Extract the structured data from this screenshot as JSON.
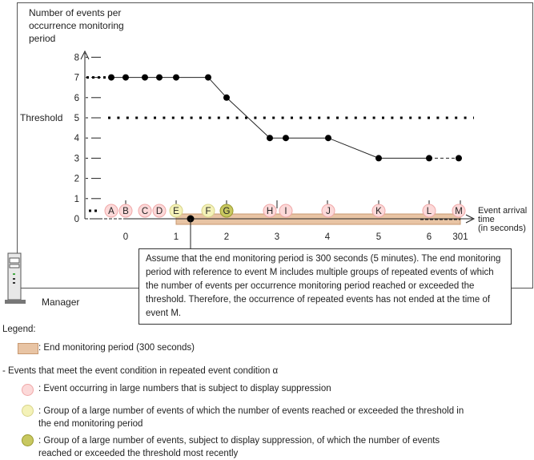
{
  "y_axis_title": [
    "Number of events per",
    "occurrence monitoring",
    "period"
  ],
  "threshold_label": "Threshold",
  "threshold_value": 5,
  "y_ticks": [
    "0",
    "1",
    "2",
    "3",
    "4",
    "5",
    "6",
    "7",
    "8"
  ],
  "x_ticks": [
    "0",
    "1",
    "2",
    "3",
    "4",
    "5",
    "6",
    "301"
  ],
  "x_axis_title": [
    "Event arrival",
    "time",
    "(in seconds)"
  ],
  "events": [
    {
      "label": "A",
      "type": "suppressed",
      "count": 7
    },
    {
      "label": "B",
      "type": "suppressed",
      "count": 7
    },
    {
      "label": "C",
      "type": "suppressed",
      "count": 7
    },
    {
      "label": "D",
      "type": "suppressed",
      "count": 7
    },
    {
      "label": "E",
      "type": "group",
      "count": 7
    },
    {
      "label": "F",
      "type": "group",
      "count": 7
    },
    {
      "label": "G",
      "type": "recent",
      "count": 6
    },
    {
      "label": "H",
      "type": "suppressed",
      "count": 4
    },
    {
      "label": "I",
      "type": "suppressed",
      "count": 4
    },
    {
      "label": "J",
      "type": "suppressed",
      "count": 4
    },
    {
      "label": "K",
      "type": "suppressed",
      "count": 3
    },
    {
      "label": "L",
      "type": "suppressed",
      "count": 3
    },
    {
      "label": "M",
      "type": "suppressed",
      "count": 3
    }
  ],
  "colors": {
    "suppressed": "#fcd9d9",
    "suppressed_border": "#f0a8a8",
    "group": "#f4f2b8",
    "group_border": "#d8d48a",
    "recent": "#c8c860",
    "recent_border": "#9a9a30",
    "band": "#e8c4a4",
    "band_border": "#c89870"
  },
  "callout": "Assume that the end monitoring period is 300 seconds (5 minutes). The end monitoring period with reference to event M includes multiple groups of repeated events of which the number of events per occurrence monitoring period reached or exceeded the threshold. Therefore, the occurrence of repeated events has not ended at the time of event M.",
  "manager_label": "Manager",
  "legend": {
    "title": "Legend:",
    "band": ": End monitoring period (300 seconds)",
    "events_heading": "- Events that meet the event condition in repeated event condition α",
    "items": [
      ": Event occurring in large numbers that is subject to display suppression",
      ": Group of a large number of events of which the number of events reached or exceeded the threshold in the end monitoring period",
      ": Group of a large number of events, subject to display suppression, of which the number of events reached or exceeded the threshold most recently"
    ]
  }
}
